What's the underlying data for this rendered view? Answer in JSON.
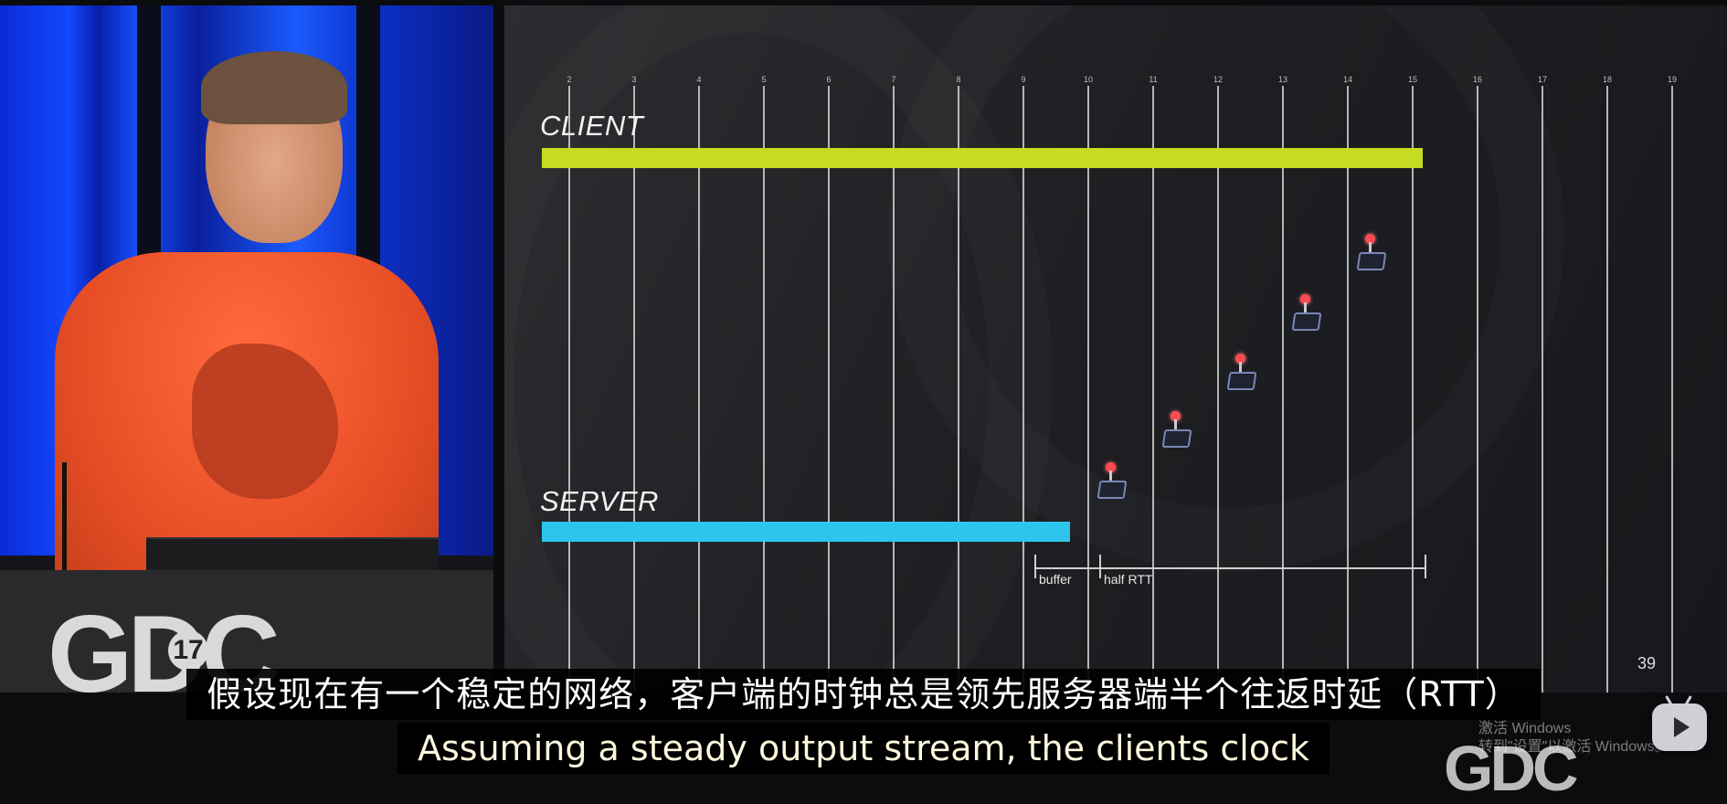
{
  "slide": {
    "tick_numbers": [
      "2",
      "3",
      "4",
      "5",
      "6",
      "7",
      "8",
      "9",
      "10",
      "11",
      "12",
      "13",
      "14",
      "15",
      "16",
      "17",
      "18",
      "19"
    ],
    "client_label": "CLIENT",
    "server_label": "SERVER",
    "client_bar_color": "#c6dc22",
    "server_bar_color": "#2ec5ec",
    "buffer_label": "buffer",
    "half_rtt_label": "half RTT",
    "page_number": "39",
    "input_marker_icon": "joystick-icon"
  },
  "podium_logo": {
    "text": "GDC",
    "year": "17"
  },
  "subtitles": {
    "chinese": "假设现在有一个稳定的网络，客户端的时钟总是领先服务器端半个往返时延（RTT）",
    "english": "Assuming a steady output stream, the clients clock"
  },
  "overlays": {
    "corner_logo": "GDC",
    "windows_activation_line1": "激活 Windows",
    "windows_activation_line2": "转到\"设置\"以激活 Windows。",
    "play_icon": "play-icon"
  }
}
